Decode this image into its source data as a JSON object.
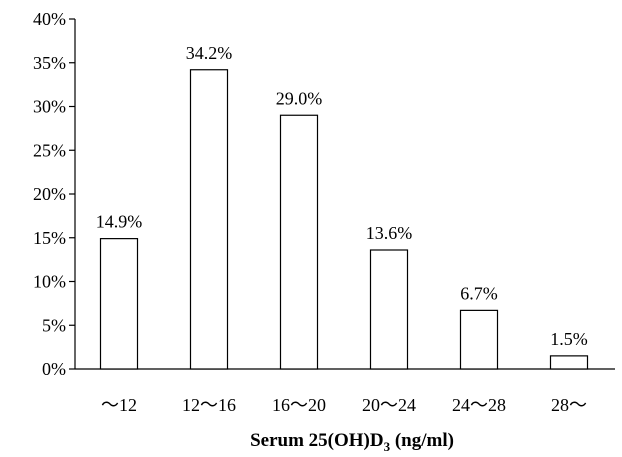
{
  "chart_data": {
    "type": "bar",
    "categories": [
      "～12",
      "12～16",
      "16～20",
      "20～24",
      "24～28",
      "28～"
    ],
    "values": [
      14.9,
      34.2,
      29.0,
      13.6,
      6.7,
      1.5
    ],
    "data_labels": [
      "14.9%",
      "34.2%",
      "29.0%",
      "13.6%",
      "6.7%",
      "1.5%"
    ],
    "y_ticks": [
      "0%",
      "5%",
      "10%",
      "15%",
      "20%",
      "25%",
      "30%",
      "35%",
      "40%"
    ],
    "ylim": [
      0,
      40
    ],
    "xlabel": {
      "prefix": "Serum 25(OH)D",
      "subscript": "3",
      "suffix": " (ng/ml)"
    },
    "ylabel": "",
    "title": "",
    "grid": false,
    "bar_fill": "#ffffff",
    "bar_stroke": "#000000"
  }
}
